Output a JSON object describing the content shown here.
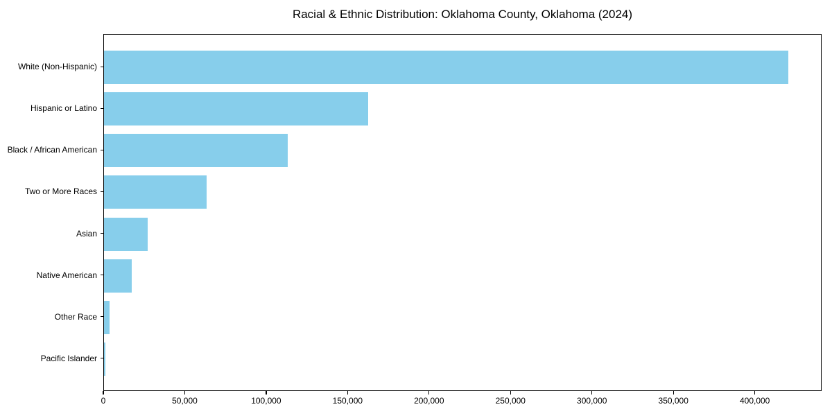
{
  "figure": {
    "background": "#ffffff",
    "text_color": "#000000",
    "axis_color": "#000000"
  },
  "chart_data": {
    "type": "bar",
    "orientation": "horizontal",
    "title": "Racial & Ethnic Distribution: Oklahoma County, Oklahoma (2024)",
    "categories": [
      "White (Non-Hispanic)",
      "Hispanic or Latino",
      "Black / African American",
      "Two or More Races",
      "Asian",
      "Native American",
      "Other Race",
      "Pacific Islander"
    ],
    "values": [
      420000,
      162000,
      113000,
      63000,
      26700,
      17000,
      3400,
      800
    ],
    "bar_color": "#87CEEB",
    "xlabel": "",
    "ylabel": "",
    "xlim": [
      0,
      441000
    ],
    "grid": false,
    "legend": "none",
    "x_ticks": [
      {
        "value": 0,
        "label": "0"
      },
      {
        "value": 50000,
        "label": "50,000"
      },
      {
        "value": 100000,
        "label": "100,000"
      },
      {
        "value": 150000,
        "label": "150,000"
      },
      {
        "value": 200000,
        "label": "200,000"
      },
      {
        "value": 250000,
        "label": "250,000"
      },
      {
        "value": 300000,
        "label": "300,000"
      },
      {
        "value": 350000,
        "label": "350,000"
      },
      {
        "value": 400000,
        "label": "400,000"
      }
    ]
  }
}
